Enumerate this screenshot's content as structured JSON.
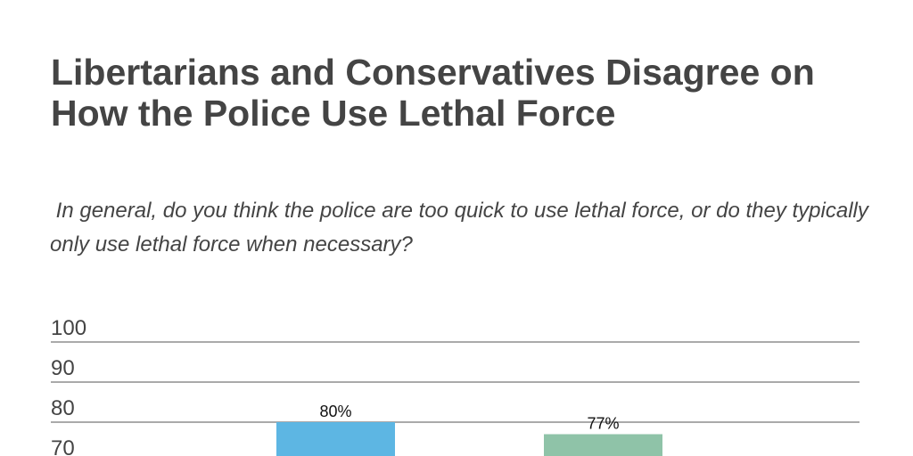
{
  "chart_data": {
    "type": "bar",
    "title": "Libertarians and Conservatives Disagree on How the Police Use Lethal Force",
    "subtitle": " In general, do you think the police are too quick to use lethal force, or do they typically only use lethal force when necessary?",
    "xlabel": "",
    "ylabel": "",
    "yticks": [
      100,
      90,
      80,
      70
    ],
    "ylim": [
      70,
      100
    ],
    "grid": true,
    "values": [
      80,
      77
    ],
    "data_labels": [
      "80%",
      "77%"
    ],
    "colors": [
      "#5DB6E3",
      "#8FC3A8"
    ]
  }
}
